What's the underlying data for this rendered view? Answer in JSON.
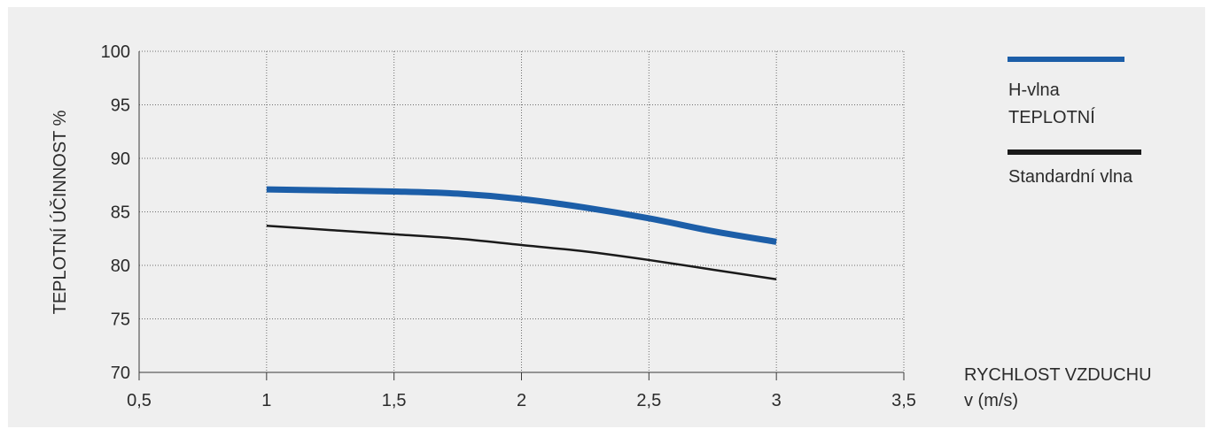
{
  "chart_data": {
    "type": "line",
    "title": "",
    "xlabel": [
      "RYCHLOST VZDUCHU",
      "v (m/s)"
    ],
    "ylabel": "TEPLOTNÍ ÚČINNOST  %",
    "xlim": [
      0.5,
      3.5
    ],
    "ylim": [
      70,
      100
    ],
    "xticks": [
      0.5,
      1,
      1.5,
      2,
      2.5,
      3,
      3.5
    ],
    "xtick_labels": [
      "0,5",
      "1",
      "1,5",
      "2",
      "2,5",
      "3",
      "3,5"
    ],
    "yticks": [
      70,
      75,
      80,
      85,
      90,
      95,
      100
    ],
    "ytick_labels": [
      "70",
      "75",
      "80",
      "85",
      "90",
      "95",
      "100"
    ],
    "grid": true,
    "legend_position": "right",
    "series": [
      {
        "name": [
          "H-vlna",
          "TEPLOTNÍ"
        ],
        "color": "#1c5ea8",
        "line_width_weight": "thick",
        "x": [
          1,
          1.25,
          1.5,
          1.75,
          2,
          2.25,
          2.5,
          2.75,
          3
        ],
        "y": [
          87.1,
          87.0,
          86.9,
          86.7,
          86.2,
          85.4,
          84.4,
          83.2,
          82.2
        ]
      },
      {
        "name": [
          "Standardní vlna"
        ],
        "color": "#1a1a1a",
        "line_width_weight": "thin",
        "x": [
          1,
          1.25,
          1.5,
          1.75,
          2,
          2.25,
          2.5,
          2.75,
          3
        ],
        "y": [
          83.7,
          83.3,
          82.9,
          82.5,
          81.9,
          81.3,
          80.5,
          79.6,
          78.7
        ]
      }
    ]
  }
}
